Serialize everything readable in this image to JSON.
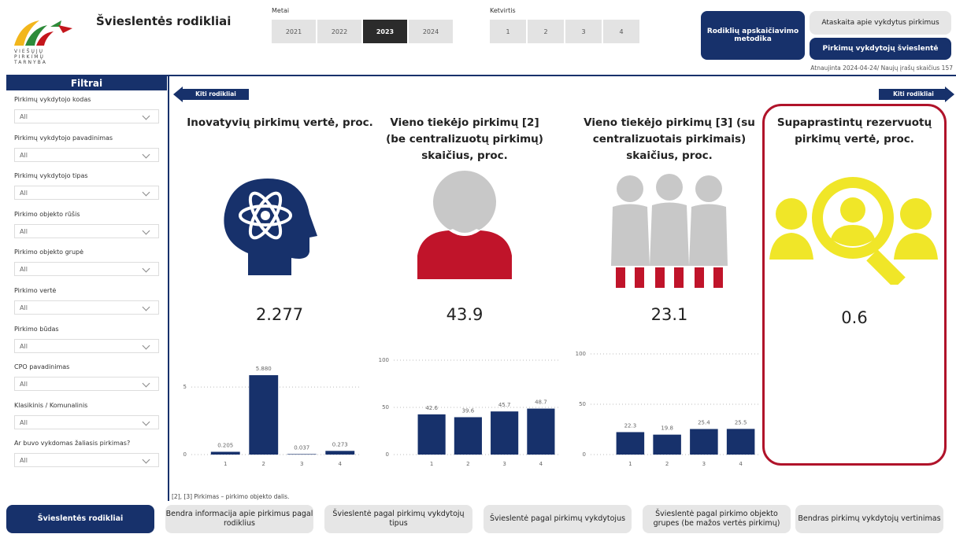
{
  "header": {
    "title": "Švieslentės rodikliai",
    "logo": [
      "VIEŠŲJŲ",
      "PIRKIMŲ",
      "TARNYBA"
    ]
  },
  "year_filter": {
    "label": "Metai",
    "options": [
      "2021",
      "2022",
      "2023",
      "2024"
    ],
    "selected": "2023"
  },
  "quarter_filter": {
    "label": "Ketvirtis",
    "options": [
      "1",
      "2",
      "3",
      "4"
    ]
  },
  "actions": [
    "Rodiklių apskaičiavimo metodika",
    "Ataskaita apie vykdytus pirkimus",
    "Pirkimų vykdytojų švieslentė"
  ],
  "updated": "Atnaujinta 2024-04-24/ Naujų įrašų skaičius 157",
  "sidebar": {
    "title": "Filtrai",
    "filters": [
      {
        "label": "Pirkimų vykdytojo kodas",
        "value": "All"
      },
      {
        "label": "Pirkimų vykdytojo pavadinimas",
        "value": "All"
      },
      {
        "label": "Pirkimų vykdytojo tipas",
        "value": "All"
      },
      {
        "label": "Pirkimo objekto rūšis",
        "value": "All"
      },
      {
        "label": "Pirkimo objekto grupė",
        "value": "All"
      },
      {
        "label": "Pirkimo vertė",
        "value": "All"
      },
      {
        "label": "Pirkimo būdas",
        "value": "All"
      },
      {
        "label": "CPO pavadinimas",
        "value": "All"
      },
      {
        "label": "Klasikinis / Komunalinis",
        "value": "All"
      },
      {
        "label": "Ar buvo vykdomas žaliasis pirkimas?",
        "value": "All"
      }
    ]
  },
  "nav": {
    "prev": "Kiti rodikliai",
    "next": "Kiti rodikliai"
  },
  "cards": [
    {
      "title": "Inovatyvių pirkimų vertė, proc.",
      "value": 2.277,
      "chart": {
        "type": "bar",
        "categories": [
          "1",
          "2",
          "3",
          "4"
        ],
        "values": [
          0.205,
          5.88,
          0.037,
          0.273
        ],
        "value_labels": [
          "0.205",
          "5.880",
          "0.037",
          "0.273"
        ],
        "ylim": [
          0,
          6
        ],
        "yticks": [
          0,
          5
        ],
        "color": "#17316b",
        "grid": true
      }
    },
    {
      "title": "Vieno tiekėjo pirkimų [2] (be centralizuotų pirkimų) skaičius, proc.",
      "value": 43.9,
      "chart": {
        "type": "bar",
        "categories": [
          "1",
          "2",
          "3",
          "4"
        ],
        "values": [
          42.6,
          39.6,
          45.7,
          48.7
        ],
        "ylim": [
          0,
          100
        ],
        "yticks": [
          0,
          50,
          100
        ],
        "color": "#17316b",
        "grid": true
      }
    },
    {
      "title": "Vieno tiekėjo pirkimų [3] (su centralizuotais pirkimais) skaičius, proc.",
      "value": 23.1,
      "chart": {
        "type": "bar",
        "categories": [
          "1",
          "2",
          "3",
          "4"
        ],
        "values": [
          22.3,
          19.8,
          25.4,
          25.5
        ],
        "ylim": [
          0,
          100
        ],
        "yticks": [
          0,
          50,
          100
        ],
        "color": "#17316b",
        "grid": true
      }
    },
    {
      "title": "Supaprastintų rezervuotų pirkimų vertė, proc.",
      "value": 0.6
    }
  ],
  "footnote": "[2], [3] Pirkimas – pirkimo objekto dalis.",
  "tabs": {
    "items": [
      "Švieslentės rodikliai",
      "Bendra informacija apie pirkimus pagal rodiklius",
      "Švieslentė pagal pirkimų vykdytojų tipus",
      "Švieslentė pagal pirkimų vykdytojus",
      "Švieslentė pagal pirkimo objekto grupes (be mažos vertės pirkimų)",
      "Bendras pirkimų vykdytojų vertinimas"
    ],
    "active": "Švieslentės rodikliai"
  }
}
